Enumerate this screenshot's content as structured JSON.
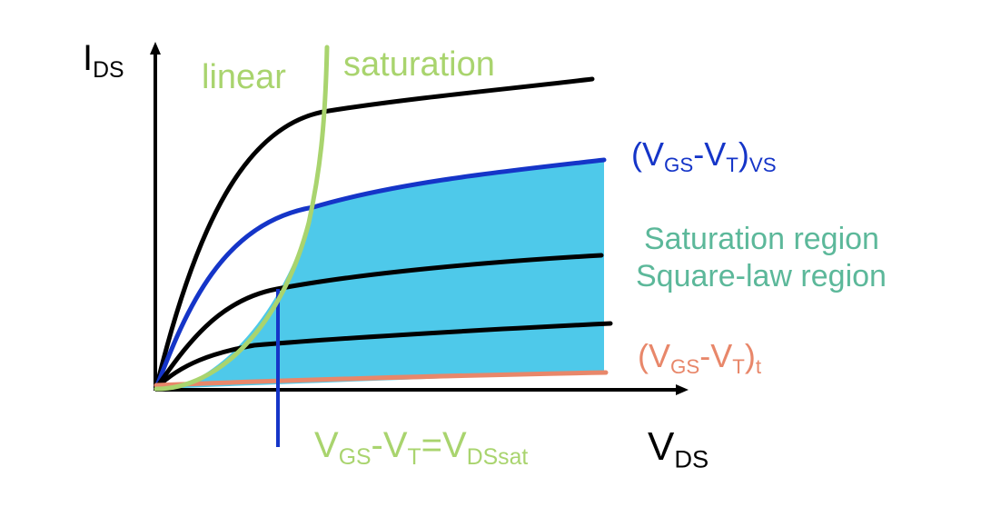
{
  "colors": {
    "background": "#ffffff",
    "axes": "#000000",
    "curve": "#000000",
    "highlight_curve": "#1535c8",
    "threshold_curve": "#e8876a",
    "boundary": "#a9d46e",
    "region_fill": "#4ec9ea",
    "region_text": "#5cb89a",
    "vline": "#1535c8"
  },
  "axes": {
    "y_main": "I",
    "y_sub": "DS",
    "x_main": "V",
    "x_sub": "DS"
  },
  "regions": {
    "linear": "linear",
    "saturation": "saturation",
    "name_line1": "Saturation region",
    "name_line2": "Square-law region"
  },
  "labels": {
    "vs": {
      "open": "(V",
      "sub1": "GS",
      "mid": "-V",
      "sub2": "T",
      "close": ")",
      "sub3": "VS"
    },
    "t": {
      "open": "(V",
      "sub1": "GS",
      "mid": "-V",
      "sub2": "T",
      "close": ")",
      "sub3": "t"
    },
    "vdssat": {
      "a": "V",
      "a_sub": "GS",
      "b": "-V",
      "b_sub": "T",
      "c": "=V",
      "c_sub": "DSsat"
    }
  }
}
